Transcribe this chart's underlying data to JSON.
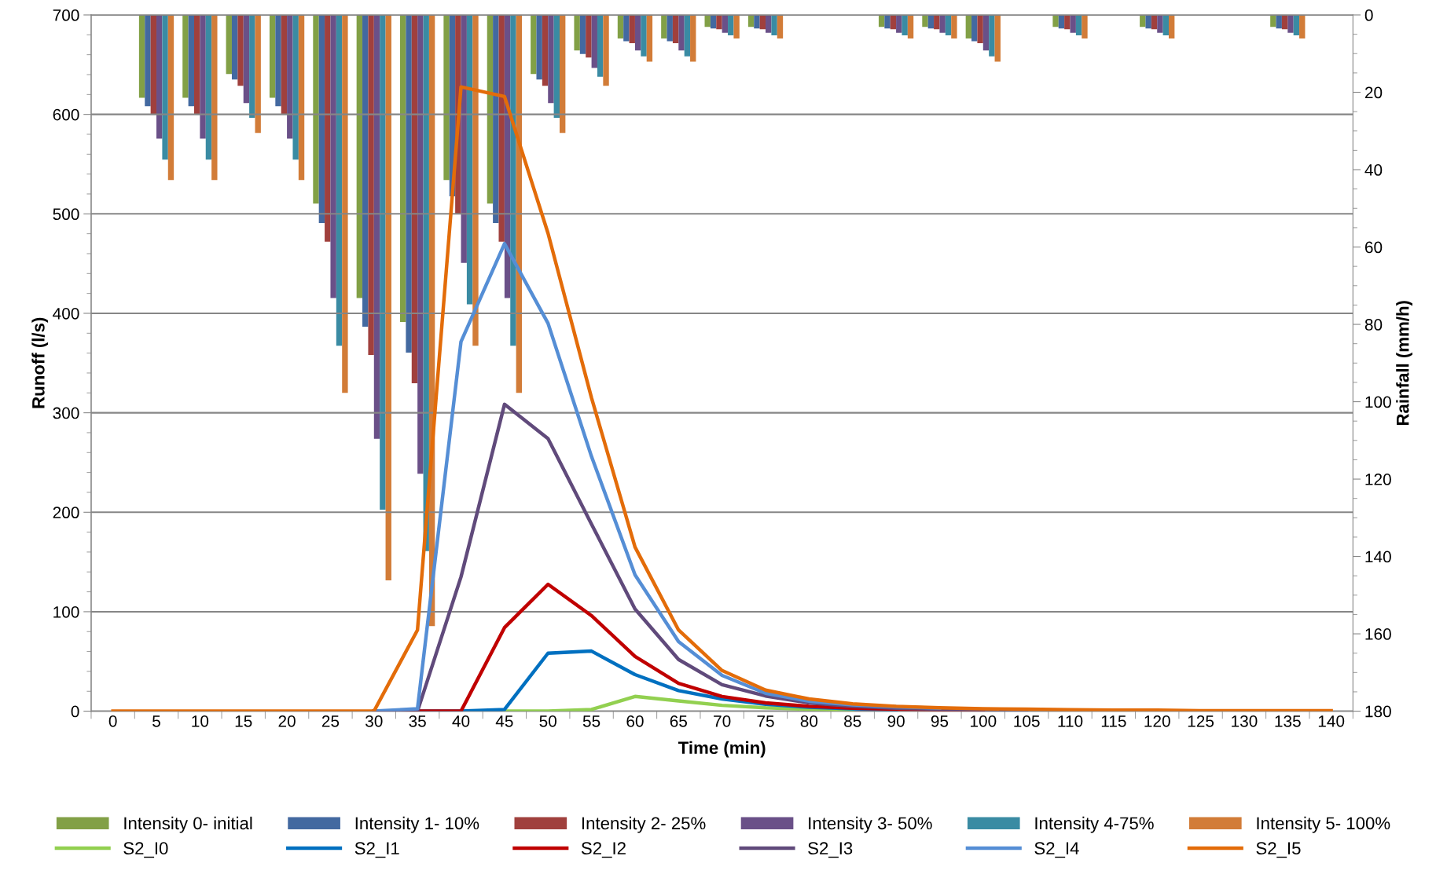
{
  "chart_data": {
    "type": "bar",
    "xlabel": "Time (min)",
    "ylabel": "Runoff (l/s)",
    "y2label": "Rainfall (mm/h)",
    "categories": [
      "0",
      "5",
      "10",
      "15",
      "20",
      "25",
      "30",
      "35",
      "40",
      "45",
      "50",
      "55",
      "60",
      "65",
      "70",
      "75",
      "80",
      "85",
      "90",
      "95",
      "100",
      "105",
      "110",
      "115",
      "120",
      "125",
      "130",
      "135",
      "140"
    ],
    "series": [
      {
        "name": "Intensity 0- initial",
        "axis": "y2",
        "color": "#82a046",
        "values": [
          0,
          21.4,
          21.4,
          15.3,
          21.4,
          48.8,
          73.2,
          79.4,
          42.7,
          48.8,
          15.3,
          9.2,
          6.1,
          6.1,
          3.1,
          3.1,
          0,
          0,
          3.1,
          3.1,
          6.1,
          0,
          3.1,
          0,
          3.1,
          0,
          0,
          3.1,
          0
        ]
      },
      {
        "name": "Intensity 1- 10%",
        "axis": "y2",
        "color": "#4369a0",
        "values": [
          0,
          23.6,
          23.6,
          16.7,
          23.6,
          53.8,
          80.6,
          87.3,
          46.9,
          53.8,
          16.7,
          10.1,
          6.8,
          6.8,
          3.5,
          3.5,
          0,
          0,
          3.5,
          3.5,
          6.8,
          0,
          3.5,
          0,
          3.5,
          0,
          0,
          3.5,
          0
        ]
      },
      {
        "name": "Intensity 2- 25%",
        "axis": "y2",
        "color": "#a0403d",
        "values": [
          0,
          25.7,
          25.7,
          18.3,
          25.7,
          58.6,
          87.9,
          95.2,
          51.4,
          58.6,
          18.3,
          11.0,
          7.3,
          7.3,
          3.7,
          3.7,
          0,
          0,
          3.7,
          3.7,
          7.3,
          0,
          3.7,
          0,
          3.7,
          0,
          0,
          3.7,
          0
        ]
      },
      {
        "name": "Intensity 3- 50%",
        "axis": "y2",
        "color": "#6a5088",
        "values": [
          0,
          32.0,
          32.0,
          22.8,
          32.0,
          73.2,
          109.6,
          118.6,
          64.1,
          73.2,
          22.8,
          13.7,
          9.2,
          9.2,
          4.6,
          4.6,
          0,
          0,
          4.6,
          4.6,
          9.2,
          0,
          4.6,
          0,
          4.6,
          0,
          0,
          4.6,
          0
        ]
      },
      {
        "name": "Intensity 4-75%",
        "axis": "y2",
        "color": "#3a8ba3",
        "values": [
          0,
          37.4,
          37.4,
          26.6,
          37.4,
          85.5,
          127.9,
          138.6,
          74.8,
          85.5,
          26.6,
          16.0,
          10.7,
          10.7,
          5.3,
          5.3,
          0,
          0,
          5.3,
          5.3,
          10.7,
          0,
          5.3,
          0,
          5.3,
          0,
          0,
          5.3,
          0
        ]
      },
      {
        "name": "Intensity 5- 100%",
        "axis": "y2",
        "color": "#d27c38",
        "values": [
          0,
          42.7,
          42.7,
          30.5,
          42.7,
          97.7,
          146.2,
          158,
          85.5,
          97.7,
          30.5,
          18.3,
          12.1,
          12.1,
          6.1,
          6.1,
          0,
          0,
          6.1,
          6.1,
          12.1,
          0,
          6.1,
          0,
          6.1,
          0,
          0,
          6.1,
          0
        ]
      },
      {
        "name": "S2_I0",
        "type": "line",
        "color": "#92d050",
        "values": [
          null,
          null,
          null,
          null,
          null,
          null,
          null,
          null,
          null,
          0,
          0,
          1.7,
          14.8,
          10.3,
          5.9,
          3.4,
          2,
          1,
          null,
          null,
          null,
          null,
          null,
          null,
          null,
          null,
          null,
          null,
          null
        ]
      },
      {
        "name": "S2_I1",
        "type": "line",
        "color": "#0070c0",
        "values": [
          null,
          null,
          null,
          null,
          null,
          null,
          0,
          0,
          0,
          1.7,
          58.3,
          60.4,
          36.8,
          20.7,
          12.3,
          6.9,
          3.9,
          2.5,
          1.5,
          null,
          null,
          null,
          null,
          null,
          null,
          null,
          null,
          null,
          null
        ]
      },
      {
        "name": "S2_I2",
        "type": "line",
        "color": "#c00000",
        "values": [
          null,
          null,
          null,
          null,
          null,
          null,
          0,
          0,
          0,
          84,
          127.6,
          96,
          55,
          28,
          14.8,
          8.4,
          4.9,
          3,
          2,
          1.5,
          1,
          null,
          null,
          null,
          null,
          null,
          null,
          null,
          null
        ]
      },
      {
        "name": "S2_I3",
        "type": "line",
        "color": "#604a7b",
        "values": [
          null,
          null,
          null,
          null,
          null,
          null,
          0,
          0,
          135,
          308.5,
          274,
          188,
          102.7,
          52,
          26.6,
          15.3,
          8.4,
          4.9,
          3,
          2,
          1.5,
          1,
          null,
          null,
          null,
          null,
          null,
          null,
          null
        ]
      },
      {
        "name": "S2_I4",
        "type": "line",
        "color": "#558ed5",
        "values": [
          null,
          null,
          null,
          null,
          null,
          null,
          0,
          2.5,
          371.5,
          470,
          390,
          256,
          137,
          70,
          36,
          18,
          10,
          6.4,
          4.4,
          3,
          null,
          null,
          null,
          null,
          null,
          null,
          null,
          null,
          null
        ]
      },
      {
        "name": "S2_I5",
        "type": "line",
        "color": "#e36c09",
        "values": [
          0,
          0,
          0,
          0,
          0,
          0,
          0,
          81.6,
          627.6,
          618,
          480.5,
          315,
          165,
          81.6,
          40.9,
          21.2,
          12.3,
          7.4,
          4.9,
          3.4,
          2.5,
          2,
          1.5,
          1,
          1,
          0.5,
          0.5,
          0.5,
          0.5
        ]
      }
    ],
    "ylim": [
      0,
      700
    ],
    "yticks": [
      0,
      100,
      200,
      300,
      400,
      500,
      600,
      700
    ],
    "y2lim": [
      180,
      0
    ],
    "y2ticks": [
      0,
      20,
      40,
      60,
      80,
      100,
      120,
      140,
      160,
      180
    ],
    "grid": "y",
    "legend": "bottom",
    "marker": "none",
    "line_style": "solid"
  }
}
